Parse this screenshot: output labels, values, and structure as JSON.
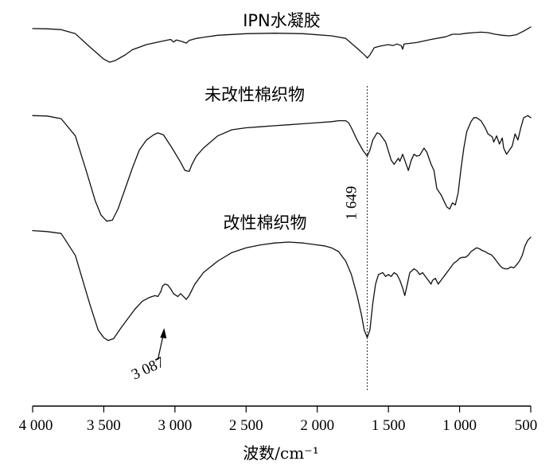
{
  "chart_data": {
    "type": "line",
    "xlabel": "波数/cm⁻¹",
    "ylabel": "",
    "xlim": [
      4000,
      500
    ],
    "x_reversed": true,
    "x_ticks": [
      4000,
      3500,
      3000,
      2500,
      2000,
      1500,
      1000,
      500
    ],
    "x_tick_labels": [
      "4 000",
      "3 500",
      "3 000",
      "2 500",
      "2 000",
      "1 500",
      "1 000",
      "500"
    ],
    "y_ticks_shown": false,
    "grid": false,
    "series": [
      {
        "name": "IPN水凝胶",
        "points": [
          [
            4000,
            0.955
          ],
          [
            3900,
            0.952
          ],
          [
            3800,
            0.945
          ],
          [
            3700,
            0.905
          ],
          [
            3600,
            0.78
          ],
          [
            3500,
            0.66
          ],
          [
            3460,
            0.63
          ],
          [
            3420,
            0.645
          ],
          [
            3350,
            0.7
          ],
          [
            3300,
            0.75
          ],
          [
            3200,
            0.8
          ],
          [
            3100,
            0.83
          ],
          [
            3030,
            0.85
          ],
          [
            3010,
            0.825
          ],
          [
            2990,
            0.845
          ],
          [
            2950,
            0.83
          ],
          [
            2920,
            0.815
          ],
          [
            2900,
            0.84
          ],
          [
            2850,
            0.86
          ],
          [
            2700,
            0.89
          ],
          [
            2500,
            0.905
          ],
          [
            2300,
            0.91
          ],
          [
            2100,
            0.905
          ],
          [
            1900,
            0.885
          ],
          [
            1800,
            0.86
          ],
          [
            1700,
            0.74
          ],
          [
            1660,
            0.69
          ],
          [
            1649,
            0.67
          ],
          [
            1630,
            0.7
          ],
          [
            1600,
            0.77
          ],
          [
            1560,
            0.785
          ],
          [
            1500,
            0.8
          ],
          [
            1470,
            0.79
          ],
          [
            1440,
            0.805
          ],
          [
            1410,
            0.79
          ],
          [
            1400,
            0.755
          ],
          [
            1390,
            0.805
          ],
          [
            1300,
            0.82
          ],
          [
            1200,
            0.85
          ],
          [
            1100,
            0.875
          ],
          [
            1050,
            0.9
          ],
          [
            1000,
            0.9
          ],
          [
            950,
            0.91
          ],
          [
            900,
            0.915
          ],
          [
            850,
            0.92
          ],
          [
            800,
            0.915
          ],
          [
            750,
            0.9
          ],
          [
            700,
            0.89
          ],
          [
            650,
            0.885
          ],
          [
            600,
            0.895
          ],
          [
            550,
            0.93
          ],
          [
            500,
            0.97
          ]
        ]
      },
      {
        "name": "未改性棉织物",
        "points": [
          [
            4000,
            0.96
          ],
          [
            3900,
            0.958
          ],
          [
            3800,
            0.945
          ],
          [
            3700,
            0.86
          ],
          [
            3620,
            0.68
          ],
          [
            3560,
            0.54
          ],
          [
            3520,
            0.47
          ],
          [
            3480,
            0.44
          ],
          [
            3440,
            0.445
          ],
          [
            3400,
            0.5
          ],
          [
            3350,
            0.6
          ],
          [
            3300,
            0.7
          ],
          [
            3250,
            0.79
          ],
          [
            3200,
            0.84
          ],
          [
            3150,
            0.865
          ],
          [
            3120,
            0.875
          ],
          [
            3080,
            0.865
          ],
          [
            3020,
            0.8
          ],
          [
            2960,
            0.73
          ],
          [
            2930,
            0.69
          ],
          [
            2900,
            0.685
          ],
          [
            2880,
            0.72
          ],
          [
            2850,
            0.76
          ],
          [
            2800,
            0.8
          ],
          [
            2750,
            0.83
          ],
          [
            2700,
            0.86
          ],
          [
            2600,
            0.89
          ],
          [
            2500,
            0.9
          ],
          [
            2400,
            0.905
          ],
          [
            2300,
            0.91
          ],
          [
            2200,
            0.915
          ],
          [
            2100,
            0.92
          ],
          [
            2000,
            0.925
          ],
          [
            1900,
            0.93
          ],
          [
            1850,
            0.935
          ],
          [
            1800,
            0.935
          ],
          [
            1780,
            0.925
          ],
          [
            1760,
            0.9
          ],
          [
            1720,
            0.84
          ],
          [
            1680,
            0.79
          ],
          [
            1649,
            0.76
          ],
          [
            1630,
            0.79
          ],
          [
            1610,
            0.84
          ],
          [
            1580,
            0.875
          ],
          [
            1560,
            0.87
          ],
          [
            1520,
            0.83
          ],
          [
            1480,
            0.74
          ],
          [
            1460,
            0.72
          ],
          [
            1430,
            0.75
          ],
          [
            1420,
            0.735
          ],
          [
            1400,
            0.77
          ],
          [
            1380,
            0.73
          ],
          [
            1360,
            0.69
          ],
          [
            1340,
            0.74
          ],
          [
            1320,
            0.77
          ],
          [
            1300,
            0.76
          ],
          [
            1280,
            0.765
          ],
          [
            1250,
            0.8
          ],
          [
            1230,
            0.78
          ],
          [
            1200,
            0.72
          ],
          [
            1180,
            0.69
          ],
          [
            1160,
            0.6
          ],
          [
            1130,
            0.57
          ],
          [
            1110,
            0.54
          ],
          [
            1090,
            0.51
          ],
          [
            1070,
            0.5
          ],
          [
            1050,
            0.53
          ],
          [
            1030,
            0.52
          ],
          [
            1010,
            0.58
          ],
          [
            990,
            0.7
          ],
          [
            970,
            0.8
          ],
          [
            950,
            0.88
          ],
          [
            920,
            0.93
          ],
          [
            900,
            0.95
          ],
          [
            880,
            0.95
          ],
          [
            850,
            0.935
          ],
          [
            820,
            0.9
          ],
          [
            800,
            0.87
          ],
          [
            770,
            0.855
          ],
          [
            760,
            0.83
          ],
          [
            740,
            0.86
          ],
          [
            720,
            0.82
          ],
          [
            700,
            0.85
          ],
          [
            690,
            0.8
          ],
          [
            670,
            0.77
          ],
          [
            650,
            0.79
          ],
          [
            630,
            0.81
          ],
          [
            610,
            0.87
          ],
          [
            590,
            0.84
          ],
          [
            570,
            0.9
          ],
          [
            550,
            0.95
          ],
          [
            520,
            0.96
          ],
          [
            500,
            0.95
          ]
        ]
      },
      {
        "name": "改性棉织物",
        "points": [
          [
            4000,
            0.96
          ],
          [
            3900,
            0.955
          ],
          [
            3800,
            0.945
          ],
          [
            3700,
            0.83
          ],
          [
            3600,
            0.58
          ],
          [
            3540,
            0.44
          ],
          [
            3500,
            0.4
          ],
          [
            3470,
            0.385
          ],
          [
            3430,
            0.395
          ],
          [
            3380,
            0.45
          ],
          [
            3330,
            0.5
          ],
          [
            3280,
            0.55
          ],
          [
            3230,
            0.59
          ],
          [
            3180,
            0.61
          ],
          [
            3140,
            0.62
          ],
          [
            3120,
            0.615
          ],
          [
            3100,
            0.64
          ],
          [
            3087,
            0.67
          ],
          [
            3070,
            0.68
          ],
          [
            3050,
            0.675
          ],
          [
            3030,
            0.655
          ],
          [
            3010,
            0.63
          ],
          [
            2980,
            0.615
          ],
          [
            2960,
            0.63
          ],
          [
            2940,
            0.615
          ],
          [
            2920,
            0.6
          ],
          [
            2900,
            0.62
          ],
          [
            2860,
            0.68
          ],
          [
            2800,
            0.74
          ],
          [
            2700,
            0.8
          ],
          [
            2600,
            0.845
          ],
          [
            2500,
            0.87
          ],
          [
            2400,
            0.885
          ],
          [
            2300,
            0.895
          ],
          [
            2200,
            0.9
          ],
          [
            2100,
            0.895
          ],
          [
            2000,
            0.885
          ],
          [
            1950,
            0.88
          ],
          [
            1900,
            0.87
          ],
          [
            1850,
            0.85
          ],
          [
            1800,
            0.8
          ],
          [
            1760,
            0.73
          ],
          [
            1720,
            0.62
          ],
          [
            1690,
            0.52
          ],
          [
            1670,
            0.44
          ],
          [
            1649,
            0.4
          ],
          [
            1630,
            0.44
          ],
          [
            1610,
            0.58
          ],
          [
            1590,
            0.68
          ],
          [
            1570,
            0.73
          ],
          [
            1540,
            0.74
          ],
          [
            1520,
            0.72
          ],
          [
            1500,
            0.73
          ],
          [
            1480,
            0.72
          ],
          [
            1460,
            0.74
          ],
          [
            1440,
            0.73
          ],
          [
            1420,
            0.7
          ],
          [
            1400,
            0.66
          ],
          [
            1385,
            0.62
          ],
          [
            1370,
            0.67
          ],
          [
            1350,
            0.74
          ],
          [
            1320,
            0.76
          ],
          [
            1300,
            0.75
          ],
          [
            1280,
            0.73
          ],
          [
            1260,
            0.74
          ],
          [
            1240,
            0.72
          ],
          [
            1220,
            0.7
          ],
          [
            1200,
            0.68
          ],
          [
            1190,
            0.7
          ],
          [
            1170,
            0.71
          ],
          [
            1150,
            0.68
          ],
          [
            1130,
            0.7
          ],
          [
            1100,
            0.73
          ],
          [
            1080,
            0.75
          ],
          [
            1060,
            0.77
          ],
          [
            1040,
            0.79
          ],
          [
            1020,
            0.8
          ],
          [
            1000,
            0.815
          ],
          [
            980,
            0.82
          ],
          [
            960,
            0.82
          ],
          [
            940,
            0.83
          ],
          [
            920,
            0.85
          ],
          [
            900,
            0.86
          ],
          [
            880,
            0.87
          ],
          [
            860,
            0.865
          ],
          [
            840,
            0.855
          ],
          [
            820,
            0.85
          ],
          [
            800,
            0.84
          ],
          [
            780,
            0.835
          ],
          [
            760,
            0.82
          ],
          [
            740,
            0.8
          ],
          [
            720,
            0.78
          ],
          [
            700,
            0.765
          ],
          [
            680,
            0.76
          ],
          [
            660,
            0.76
          ],
          [
            640,
            0.77
          ],
          [
            620,
            0.765
          ],
          [
            600,
            0.78
          ],
          [
            580,
            0.8
          ],
          [
            560,
            0.83
          ],
          [
            540,
            0.88
          ],
          [
            520,
            0.91
          ],
          [
            500,
            0.925
          ]
        ]
      }
    ],
    "annotations": [
      {
        "text": "1 649",
        "x": 1649,
        "type": "vertical-dotted-line"
      },
      {
        "text": "3 087",
        "x": 3087,
        "type": "arrow",
        "series": 2
      }
    ]
  }
}
